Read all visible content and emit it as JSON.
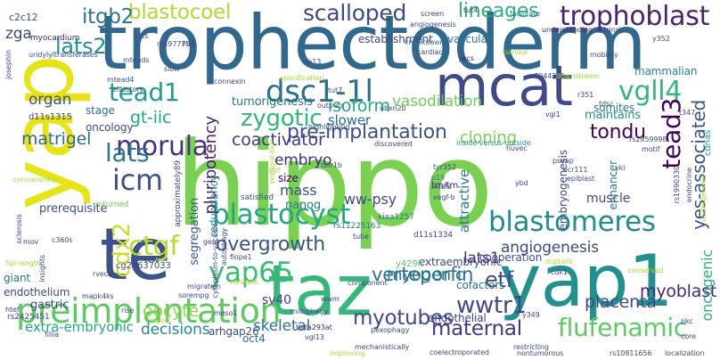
{
  "words": [
    {
      "text": "hippo",
      "color": "#7ad151"
    },
    {
      "text": "yap",
      "color": "#e6e419"
    },
    {
      "text": "trophectoderm",
      "color": "#31688e"
    },
    {
      "text": "taz",
      "color": "#35b779"
    },
    {
      "text": "yap1",
      "color": "#22908d"
    },
    {
      "text": "mcat",
      "color": "#3e4a89"
    },
    {
      "text": "te",
      "color": "#3b528b"
    },
    {
      "text": "preimplantation",
      "color": "#5ec962"
    },
    {
      "text": "blastocyst",
      "color": "#26a784"
    },
    {
      "text": "yap65",
      "color": "#3bbb75"
    },
    {
      "text": "scalloped",
      "color": "#3e4a89"
    },
    {
      "text": "trophoblast",
      "color": "#482475"
    },
    {
      "text": "blastocoel",
      "color": "#aadc32"
    },
    {
      "text": "lineages",
      "color": "#2db27d"
    },
    {
      "text": "dsc1-1l",
      "color": "#2d708e"
    },
    {
      "text": "vgll4",
      "color": "#35b779"
    },
    {
      "text": "tead3",
      "color": "#440154"
    },
    {
      "text": "yes-associated",
      "color": "#3b528b"
    },
    {
      "text": "tead1",
      "color": "#1f9e89"
    },
    {
      "text": "lats2",
      "color": "#21918c"
    },
    {
      "text": "itgb2",
      "color": "#2c728e"
    },
    {
      "text": "zga",
      "color": "#3e4989"
    },
    {
      "text": "morula",
      "color": "#46337e"
    },
    {
      "text": "icm",
      "color": "#3b518b"
    },
    {
      "text": "lats",
      "color": "#2a788e"
    },
    {
      "text": "cdx2",
      "color": "#c8e020"
    },
    {
      "text": "ctgf",
      "color": "#b5de2b"
    },
    {
      "text": "zygotic",
      "color": "#31b57b"
    },
    {
      "text": "pre-implantation",
      "color": "#3b528b"
    },
    {
      "text": "tondu",
      "color": "#440154"
    },
    {
      "text": "gt-iic",
      "color": "#20a486"
    },
    {
      "text": "blastomeres",
      "color": "#228d8d"
    },
    {
      "text": "overgrowth",
      "color": "#39558c"
    },
    {
      "text": "verteporfin",
      "color": "#2c728e"
    },
    {
      "text": "angiogenesis",
      "color": "#3e4989"
    },
    {
      "text": "etf",
      "color": "#3e4c8a"
    },
    {
      "text": "wwtr1",
      "color": "#3f4889"
    },
    {
      "text": "flufenamic",
      "color": "#5ec962"
    },
    {
      "text": "matrigel",
      "color": "#31688e"
    },
    {
      "text": "coactivator",
      "color": "#443b84"
    },
    {
      "text": "isoform",
      "color": "#21a685"
    },
    {
      "text": "embryo",
      "color": "#472d7b"
    },
    {
      "text": "myotubes",
      "color": "#3e4a89"
    },
    {
      "text": "maternal",
      "color": "#453781"
    },
    {
      "text": "skeletal",
      "color": "#2d708e"
    },
    {
      "text": "decisions",
      "color": "#238a8d"
    },
    {
      "text": "oocyte",
      "color": "#8fd744"
    },
    {
      "text": "extra-embryonic",
      "color": "#22a884"
    },
    {
      "text": "placenta",
      "color": "#3e4989"
    },
    {
      "text": "myoblast",
      "color": "#482878"
    },
    {
      "text": "oncogenic",
      "color": "#2db27d"
    },
    {
      "text": "mammalian",
      "color": "#25848e"
    },
    {
      "text": "lats1",
      "color": "#472c7a"
    },
    {
      "text": "myogenic",
      "color": "#2a788e"
    },
    {
      "text": "pluripotency",
      "color": "#482475"
    },
    {
      "text": "organ",
      "color": "#3b528b"
    },
    {
      "text": "ww-psy",
      "color": "#3e4989"
    },
    {
      "text": "mass",
      "color": "#3b518b"
    },
    {
      "text": "nanog",
      "color": "#2a788e"
    },
    {
      "text": "size",
      "color": "#440154"
    },
    {
      "text": "slower",
      "color": "#2e6e8e"
    },
    {
      "text": "cloning",
      "color": "#7ad151"
    },
    {
      "text": "vasodilation",
      "color": "#6ece58"
    },
    {
      "text": "endothelial",
      "color": "#424086"
    },
    {
      "text": "cofactors",
      "color": "#2d708e"
    },
    {
      "text": "muscle",
      "color": "#3e4a89"
    },
    {
      "text": "enhancer",
      "color": "#2a788e"
    },
    {
      "text": "maintains",
      "color": "#21918c"
    },
    {
      "text": "somites",
      "color": "#2a788e"
    },
    {
      "text": "tumorigenesis",
      "color": "#2c728e"
    },
    {
      "text": "oncology",
      "color": "#3e4989"
    },
    {
      "text": "stage",
      "color": "#2d708e"
    },
    {
      "text": "prerequisite",
      "color": "#3b528b"
    },
    {
      "text": "gastric",
      "color": "#3e4a89"
    },
    {
      "text": "sv40",
      "color": "#433e85"
    },
    {
      "text": "oct4",
      "color": "#2a788e"
    },
    {
      "text": "arhgap26",
      "color": "#3e4c8a"
    },
    {
      "text": "establishment",
      "color": "#3e4989"
    },
    {
      "text": "vascular",
      "color": "#2a788e"
    },
    {
      "text": "cooperation",
      "color": "#3b528b"
    },
    {
      "text": "attractive",
      "color": "#2a788e"
    },
    {
      "text": "embryogenesis",
      "color": "#3e4989"
    },
    {
      "text": "segregation",
      "color": "#355f8d"
    },
    {
      "text": "redundancy",
      "color": "#21918c"
    },
    {
      "text": "extraembryonic",
      "color": "#3e4a89"
    },
    {
      "text": "endothelium",
      "color": "#3e4a89"
    },
    {
      "text": "giant",
      "color": "#2d708e"
    },
    {
      "text": "myocardium",
      "color": "#482475"
    },
    {
      "text": "uridylyltransferases",
      "color": "#3b528b"
    },
    {
      "text": "c2c12",
      "color": "#3b528b"
    },
    {
      "text": "d11s1315",
      "color": "#3e4989"
    },
    {
      "text": "cg21637033",
      "color": "#3e4989"
    },
    {
      "text": "rs11225163",
      "color": "#2a788e"
    },
    {
      "text": "d11s1334",
      "color": "#3e4a89"
    },
    {
      "text": "kiaa1257",
      "color": "#2a788e"
    },
    {
      "text": "tm/tm",
      "color": "#482475"
    },
    {
      "text": "cdnas",
      "color": "#20a486"
    },
    {
      "text": "satisfied",
      "color": "#3b528b"
    },
    {
      "text": "unturned",
      "color": "#6ece58"
    },
    {
      "text": "rs2425451",
      "color": "#3e4989"
    },
    {
      "text": "mitophagy",
      "color": "#3e4a89"
    },
    {
      "text": "beta293at",
      "color": "#482475"
    },
    {
      "text": "y429h",
      "color": "#5ec962"
    },
    {
      "text": "facilitate",
      "color": "#2a788e"
    },
    {
      "text": "screen",
      "color": "#3e4989"
    },
    {
      "text": "extrinsic",
      "color": "#3e4a89"
    },
    {
      "text": "understanding",
      "color": "#482475"
    },
    {
      "text": "mobility",
      "color": "#3e4989"
    },
    {
      "text": "knockdown",
      "color": "#2a788e"
    },
    {
      "text": "cardiac",
      "color": "#3e4989"
    },
    {
      "text": "yecs",
      "color": "#482475"
    },
    {
      "text": "tumour",
      "color": "#aadc32"
    },
    {
      "text": "angiogenesis",
      "color": "#3e4a89"
    },
    {
      "text": "specification",
      "color": "#aadc32"
    },
    {
      "text": "connexin",
      "color": "#3e4989"
    },
    {
      "text": "mtead4",
      "color": "#3b528b"
    },
    {
      "text": "outputs",
      "color": "#3e4a89"
    },
    {
      "text": "highlighting",
      "color": "#3e4989"
    },
    {
      "text": "ubxn2b",
      "color": "#3e4a89"
    },
    {
      "text": "discovered",
      "color": "#3e4989"
    },
    {
      "text": "inside-versus-outside",
      "color": "#21918c"
    },
    {
      "text": "huvec",
      "color": "#3e4989"
    },
    {
      "text": "vestigial-like",
      "color": "#aadc32"
    },
    {
      "text": "tefr1b",
      "color": "#3e4a89"
    },
    {
      "text": "pseap",
      "color": "#3e4989"
    },
    {
      "text": "ecr111",
      "color": "#3e4a89"
    },
    {
      "text": "epiblast",
      "color": "#3e4989"
    },
    {
      "text": "yki",
      "color": "#3e4a89"
    },
    {
      "text": "ybd",
      "color": "#3e4989"
    },
    {
      "text": "tyr352",
      "color": "#3e4a89"
    },
    {
      "text": "p19",
      "color": "#2a788e"
    },
    {
      "text": "vegf-b",
      "color": "#3e4989"
    },
    {
      "text": "mtefs",
      "color": "#3e4a89"
    },
    {
      "text": "rs2859998",
      "color": "#3e4989"
    },
    {
      "text": "rs1990330",
      "color": "#3e4a89"
    },
    {
      "text": "t347",
      "color": "#3e4989"
    },
    {
      "text": "y352",
      "color": "#3e4a89"
    },
    {
      "text": "rs7944231",
      "color": "#3e4989"
    },
    {
      "text": "r351",
      "color": "#3e4a89"
    },
    {
      "text": "coelectroporated",
      "color": "#3e4989"
    },
    {
      "text": "mechanistically",
      "color": "#3e4a89"
    },
    {
      "text": "pexophagy",
      "color": "#3e4989"
    },
    {
      "text": "y349",
      "color": "#3e4a89"
    },
    {
      "text": "vgl13",
      "color": "#3e4989"
    },
    {
      "text": "improving",
      "color": "#aadc32"
    },
    {
      "text": "nontumorous",
      "color": "#3e4a89"
    },
    {
      "text": "rs10811656",
      "color": "#3e4989"
    },
    {
      "text": "localization",
      "color": "#3e4a89"
    },
    {
      "text": "core",
      "color": "#3e4989"
    },
    {
      "text": "pkc",
      "color": "#3e4a89"
    },
    {
      "text": "cdk1",
      "color": "#3e4989"
    },
    {
      "text": "conserved",
      "color": "#aadc32"
    },
    {
      "text": "digitalis",
      "color": "#aadc32"
    },
    {
      "text": "migration",
      "color": "#3e4a89"
    },
    {
      "text": "network",
      "color": "#aadc32"
    },
    {
      "text": "sorempg",
      "color": "#3e4989"
    },
    {
      "text": "component",
      "color": "#3e4a89"
    },
    {
      "text": "wwm",
      "color": "#3e4989"
    },
    {
      "text": "rise",
      "color": "#3e4a89"
    },
    {
      "text": "meso1",
      "color": "#3e4989"
    },
    {
      "text": "mapk4ks",
      "color": "#3e4a89"
    },
    {
      "text": "htef",
      "color": "#3e4989"
    },
    {
      "text": "fillia",
      "color": "#3e4a89"
    },
    {
      "text": "rvecs",
      "color": "#3e4989"
    },
    {
      "text": "tec1",
      "color": "#3e4a89"
    },
    {
      "text": "c360s",
      "color": "#3e4989"
    },
    {
      "text": "full-length",
      "color": "#aadc32"
    },
    {
      "text": "insights",
      "color": "#3e4a89"
    },
    {
      "text": "josephin",
      "color": "#3e4989"
    },
    {
      "text": "rs4977757",
      "color": "#3e4a89"
    },
    {
      "text": "effectors",
      "color": "#3e4989"
    },
    {
      "text": "mteads",
      "color": "#3e4a89"
    },
    {
      "text": "nug",
      "color": "#3e4989"
    },
    {
      "text": "acts",
      "color": "#3e4a89"
    },
    {
      "text": "slow",
      "color": "#3e4989"
    },
    {
      "text": "rp13",
      "color": "#3e4a89"
    },
    {
      "text": "tut7",
      "color": "#3e4989"
    },
    {
      "text": "tut4",
      "color": "#3e4a89"
    },
    {
      "text": "downstream",
      "color": "#aadc32"
    },
    {
      "text": "tube",
      "color": "#3e4989"
    },
    {
      "text": "gent",
      "color": "#3e4a89"
    },
    {
      "text": "flope1",
      "color": "#3e4989"
    },
    {
      "text": "ybf",
      "color": "#aadc32"
    },
    {
      "text": "restricting",
      "color": "#3e4a89"
    },
    {
      "text": "endocrine",
      "color": "#3e4989"
    },
    {
      "text": "undergenesis",
      "color": "#aadc32"
    },
    {
      "text": "tdsc",
      "color": "#3e4a89"
    },
    {
      "text": "vgl1",
      "color": "#3e4989"
    },
    {
      "text": "motif",
      "color": "#3e4a89"
    },
    {
      "text": "cytoplasm-to-vacuole",
      "color": "#3e4989"
    },
    {
      "text": "autophagy",
      "color": "#3e4a89"
    },
    {
      "text": "concurrently",
      "color": "#aadc32"
    },
    {
      "text": "sclerosis",
      "color": "#3e4989"
    },
    {
      "text": "mov",
      "color": "#3e4a89"
    },
    {
      "text": "myod",
      "color": "#aadc32"
    },
    {
      "text": "approximately89",
      "color": "#3e4989"
    }
  ]
}
